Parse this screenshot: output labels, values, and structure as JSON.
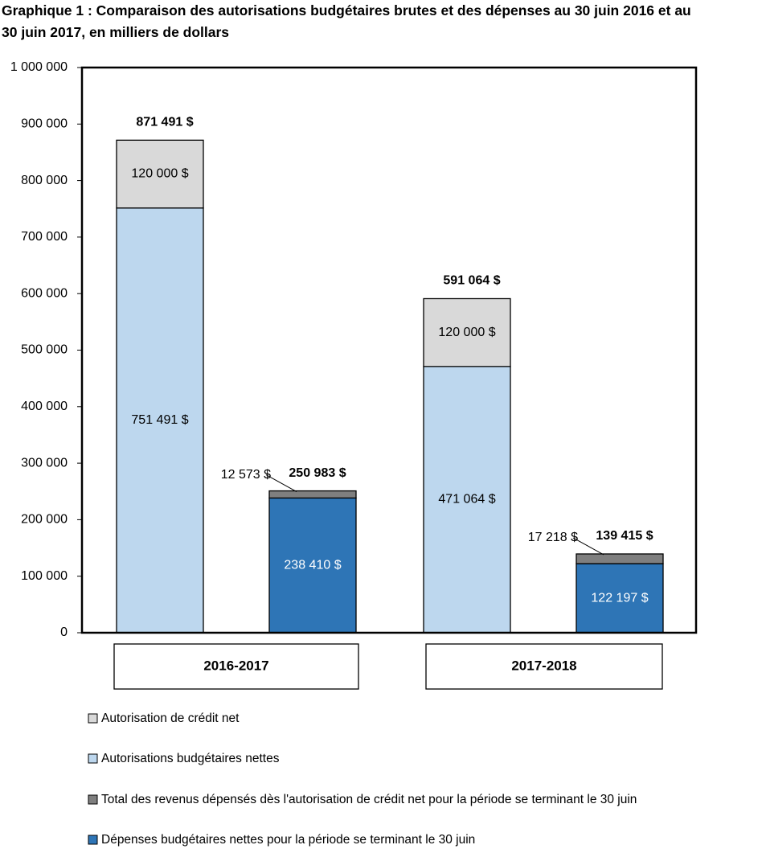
{
  "chart_data": {
    "type": "stacked-bar",
    "title": "Graphique 1 : Comparaison des autorisations budgétaires brutes et des dépenses au 30 juin 2016 et au 30 juin 2017, en milliers de dollars",
    "categories": [
      null,
      null,
      null,
      null
    ],
    "groups": [
      "2016-2017",
      "2017-2018"
    ],
    "series": [
      {
        "name": "Autorisation de crédit net",
        "color": "#d9d9d9",
        "values": [
          120000,
          null,
          120000,
          null
        ],
        "value_labels": [
          "120 000 $",
          null,
          "120 000 $",
          null
        ]
      },
      {
        "name": "Autorisations budgétaires nettes",
        "color": "#bdd7ee",
        "values": [
          751491,
          null,
          471064,
          null
        ],
        "value_labels": [
          "751 491 $",
          null,
          "471 064 $",
          null
        ]
      },
      {
        "name": "Total des revenus dépensés dès l'autorisation de crédit net pour la période se terminant le 30 juin",
        "color": "#7f7f7f",
        "values": [
          null,
          12573,
          null,
          17218
        ],
        "value_labels": [
          null,
          "12 573 $",
          null,
          "17 218 $"
        ]
      },
      {
        "name": "Dépenses budgétaires nettes pour la période se terminant le 30 juin",
        "color": "#2e75b6",
        "values": [
          null,
          238410,
          null,
          122197
        ],
        "value_labels": [
          null,
          "238 410 $",
          null,
          "122 197 $"
        ]
      }
    ],
    "totals": [
      871491,
      250983,
      591064,
      139415
    ],
    "total_labels": [
      "871 491 $",
      "250 983  $",
      "591 064 $",
      "139 415 $"
    ],
    "ylim": [
      0,
      1000000
    ],
    "yticks": [
      0,
      {
        "value": 100000,
        "label": "100 000"
      },
      {
        "value": 200000,
        "label": "200 000"
      },
      {
        "value": 300000,
        "label": "300 000"
      },
      {
        "value": 400000,
        "label": "400 000"
      },
      {
        "value": 500000,
        "label": "500 000"
      },
      {
        "value": 600000,
        "label": "600 000"
      },
      {
        "value": 700000,
        "label": "700 000"
      },
      {
        "value": 800000,
        "label": "800 000"
      },
      {
        "value": 900000,
        "label": "900 000"
      },
      {
        "value": 1000000,
        "label": "1 000 000"
      }
    ],
    "grid": false
  }
}
